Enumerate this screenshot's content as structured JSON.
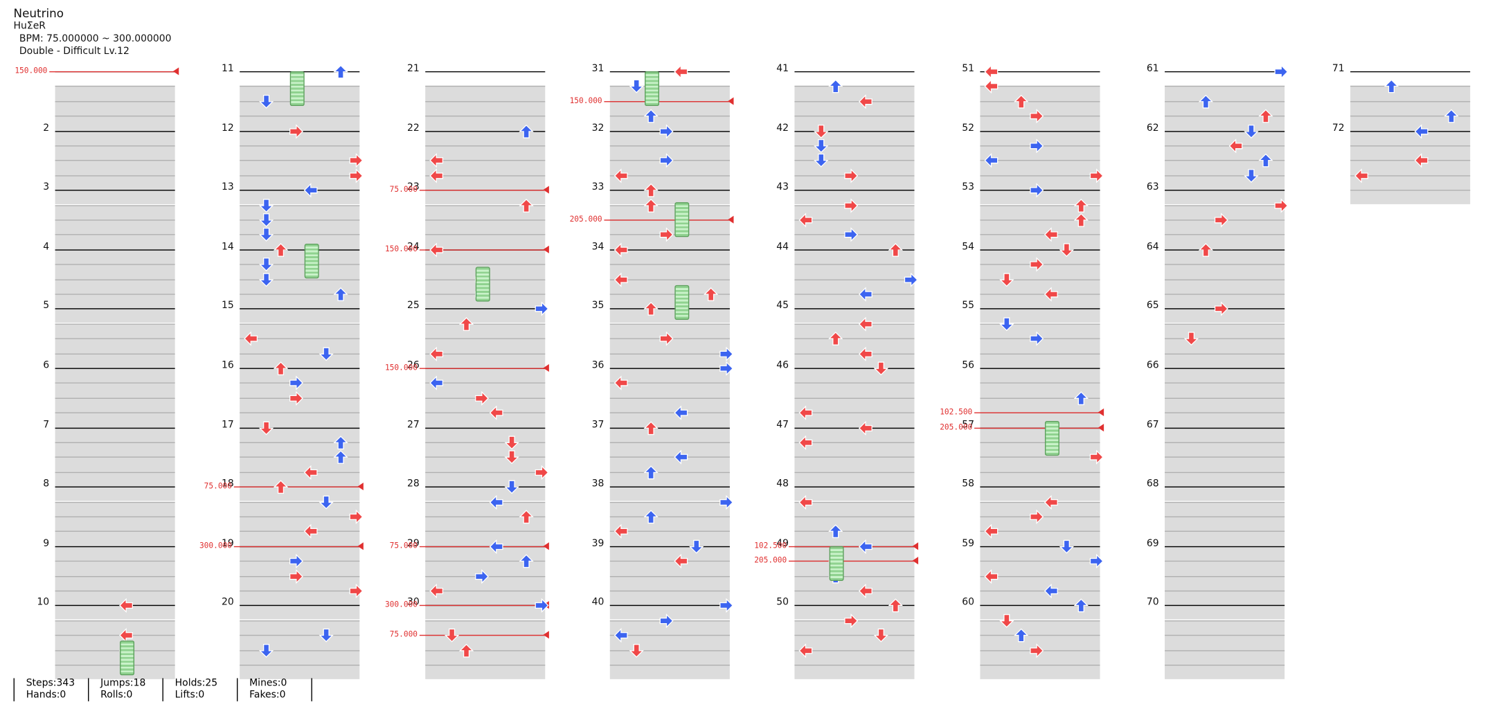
{
  "header": {
    "title": "Neutrino",
    "artist": "HuΣeR",
    "bpm": "BPM: 75.000000 ~ 300.000000",
    "difficulty": "Double - Difficult Lv.12"
  },
  "measure_labels": [
    "",
    "2",
    "3",
    "4",
    "5",
    "6",
    "7",
    "8",
    "9",
    "10",
    "11",
    "12",
    "13",
    "14",
    "15",
    "16",
    "17",
    "18",
    "19",
    "20",
    "21",
    "22",
    "23",
    "24",
    "25",
    "26",
    "27",
    "28",
    "29",
    "30",
    "31",
    "32",
    "33",
    "34",
    "35",
    "36",
    "37",
    "38",
    "39",
    "40",
    "41",
    "42",
    "43",
    "44",
    "45",
    "46",
    "47",
    "48",
    "49",
    "50",
    "51",
    "52",
    "53",
    "54",
    "55",
    "56",
    "57",
    "58",
    "59",
    "60",
    "61",
    "62",
    "63",
    "64",
    "65",
    "66",
    "67",
    "68",
    "69",
    "70",
    "71",
    "72"
  ],
  "bpm_labels": [
    "150.000",
    "75.000",
    "300.000",
    "75.000",
    "150.000",
    "75.000",
    "300.000",
    "150.000",
    "75.000",
    "150.000",
    "205.000",
    "102.500",
    "205.000",
    "102.500",
    "205.000"
  ],
  "colors": {
    "red": "#f04848",
    "blue": "#3c64f0",
    "yellow": "#f5d640",
    "orange": "#f0963c",
    "green": "#9ad89a",
    "bpm": "#e03030"
  },
  "stats": [
    {
      "a": "Steps:343",
      "b": "Hands:0"
    },
    {
      "a": "Jumps:18",
      "b": "Rolls:0"
    },
    {
      "a": "Holds:25",
      "b": "Lifts:0"
    },
    {
      "a": "Mines:0",
      "b": "Fakes:0"
    }
  ]
}
